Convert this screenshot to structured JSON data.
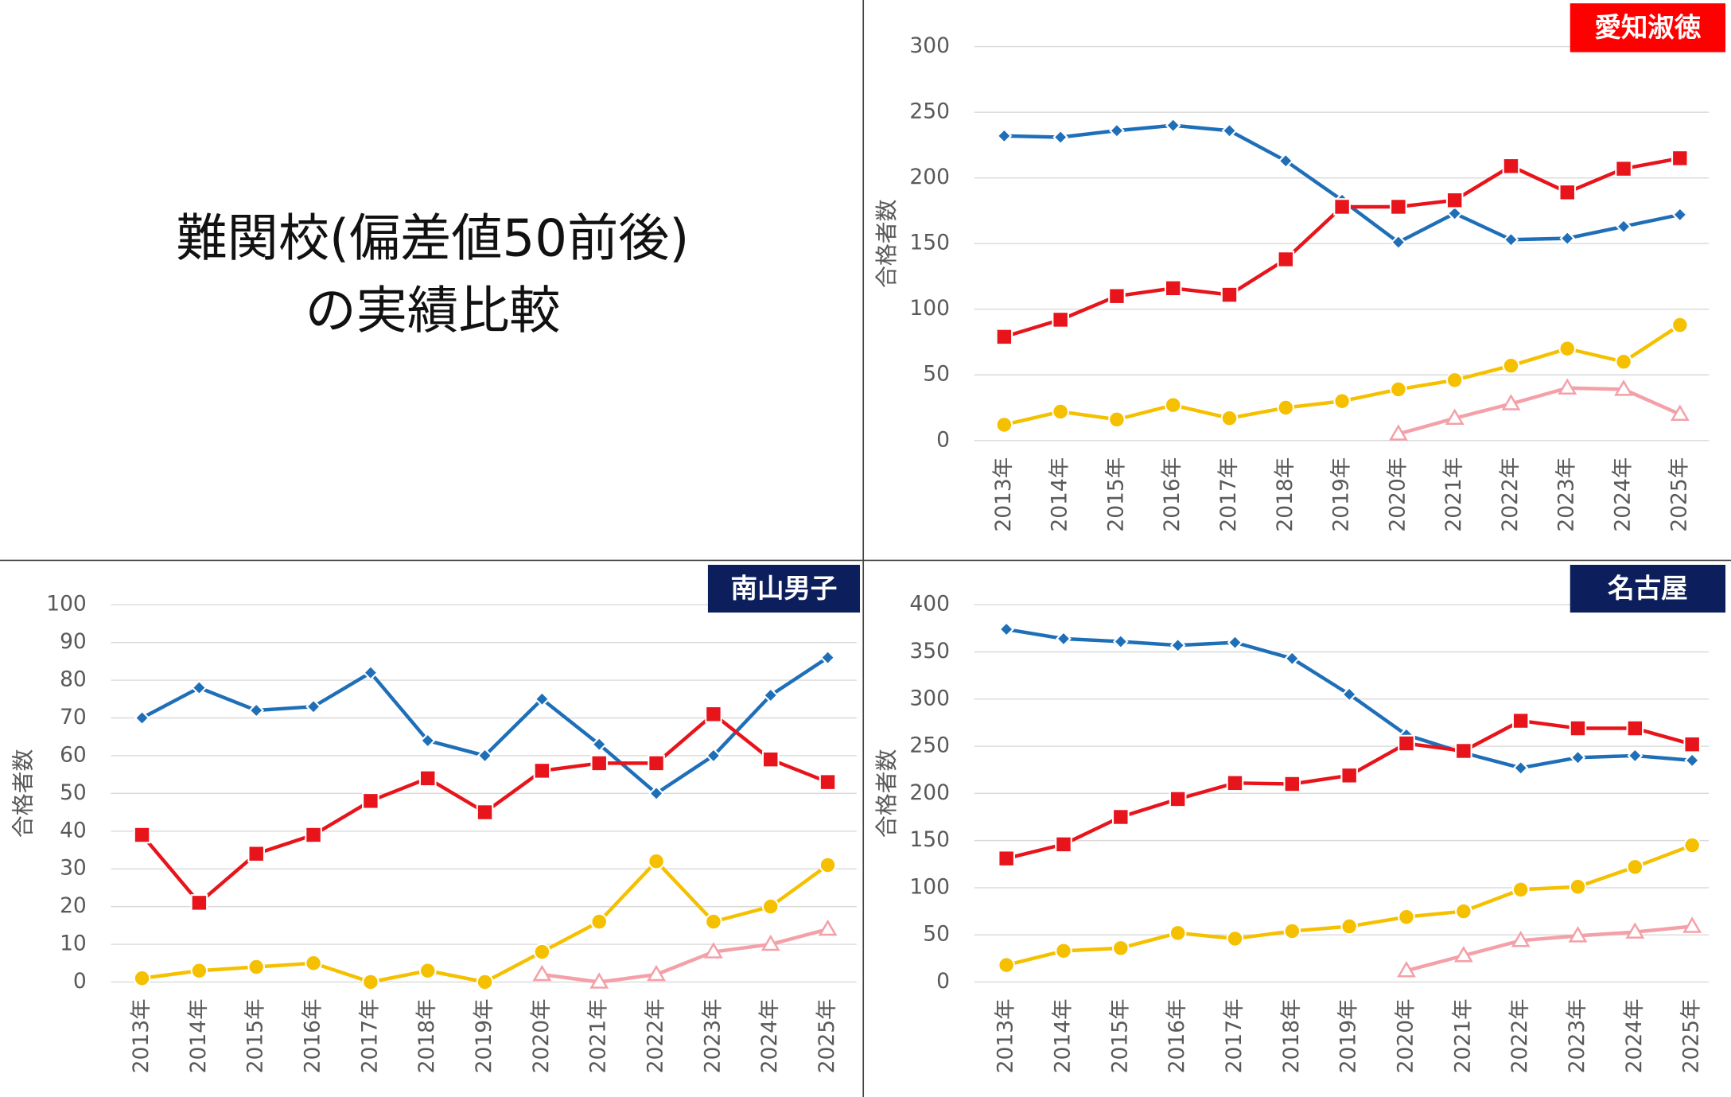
{
  "title": [
    "難関校(偏差値50前後)",
    "の実績比較"
  ],
  "chart_data": [
    {
      "type": "line",
      "title": "愛知淑徳",
      "title_color": "#ff0000",
      "ylabel": "合格者数",
      "categories": [
        "2013年",
        "2014年",
        "2015年",
        "2016年",
        "2017年",
        "2018年",
        "2019年",
        "2020年",
        "2021年",
        "2022年",
        "2023年",
        "2024年",
        "2025年"
      ],
      "ylim": [
        0,
        300
      ],
      "yticks": [
        0,
        50,
        100,
        150,
        200,
        250,
        300
      ],
      "grid": true,
      "series": [
        {
          "color": "#1f6fb8",
          "marker": "diamond",
          "values": [
            232,
            231,
            236,
            240,
            236,
            213,
            183,
            151,
            173,
            153,
            154,
            163,
            172
          ]
        },
        {
          "color": "#e8141b",
          "marker": "square",
          "values": [
            79,
            92,
            110,
            116,
            111,
            138,
            178,
            178,
            183,
            209,
            189,
            207,
            215
          ]
        },
        {
          "color": "#f5c000",
          "marker": "circle",
          "values": [
            12,
            22,
            16,
            27,
            17,
            25,
            30,
            39,
            46,
            57,
            70,
            60,
            88
          ]
        },
        {
          "color": "#f4a0a8",
          "marker": "triangle",
          "values": [
            null,
            null,
            null,
            null,
            null,
            null,
            null,
            5,
            17,
            28,
            40,
            39,
            20
          ]
        }
      ]
    },
    {
      "type": "line",
      "title": "南山男子",
      "title_color": "#0c1f5c",
      "ylabel": "合格者数",
      "categories": [
        "2013年",
        "2014年",
        "2015年",
        "2016年",
        "2017年",
        "2018年",
        "2019年",
        "2020年",
        "2021年",
        "2022年",
        "2023年",
        "2024年",
        "2025年"
      ],
      "ylim": [
        0,
        100
      ],
      "yticks": [
        0,
        10,
        20,
        30,
        40,
        50,
        60,
        70,
        80,
        90,
        100
      ],
      "grid": true,
      "series": [
        {
          "color": "#1f6fb8",
          "marker": "diamond",
          "values": [
            70,
            78,
            72,
            73,
            82,
            64,
            60,
            75,
            63,
            50,
            60,
            76,
            86
          ]
        },
        {
          "color": "#e8141b",
          "marker": "square",
          "values": [
            39,
            21,
            34,
            39,
            48,
            54,
            45,
            56,
            58,
            58,
            71,
            59,
            53
          ]
        },
        {
          "color": "#f5c000",
          "marker": "circle",
          "values": [
            1,
            3,
            4,
            5,
            0,
            3,
            0,
            8,
            16,
            32,
            16,
            20,
            31
          ]
        },
        {
          "color": "#f4a0a8",
          "marker": "triangle",
          "values": [
            null,
            null,
            null,
            null,
            null,
            null,
            null,
            2,
            0,
            2,
            8,
            10,
            14
          ]
        }
      ]
    },
    {
      "type": "line",
      "title": "名古屋",
      "title_color": "#0c1f5c",
      "ylabel": "合格者数",
      "categories": [
        "2013年",
        "2014年",
        "2015年",
        "2016年",
        "2017年",
        "2018年",
        "2019年",
        "2020年",
        "2021年",
        "2022年",
        "2023年",
        "2024年",
        "2025年"
      ],
      "ylim": [
        0,
        400
      ],
      "yticks": [
        0,
        50,
        100,
        150,
        200,
        250,
        300,
        350,
        400
      ],
      "grid": true,
      "series": [
        {
          "color": "#1f6fb8",
          "marker": "diamond",
          "values": [
            374,
            364,
            361,
            357,
            360,
            343,
            305,
            262,
            243,
            227,
            238,
            240,
            235
          ]
        },
        {
          "color": "#e8141b",
          "marker": "square",
          "values": [
            131,
            146,
            175,
            194,
            211,
            210,
            219,
            253,
            245,
            277,
            269,
            269,
            252
          ]
        },
        {
          "color": "#f5c000",
          "marker": "circle",
          "values": [
            18,
            33,
            36,
            52,
            46,
            54,
            59,
            69,
            75,
            98,
            101,
            122,
            145
          ]
        },
        {
          "color": "#f4a0a8",
          "marker": "triangle",
          "values": [
            null,
            null,
            null,
            null,
            null,
            null,
            null,
            12,
            28,
            44,
            49,
            53,
            59
          ]
        }
      ]
    }
  ]
}
